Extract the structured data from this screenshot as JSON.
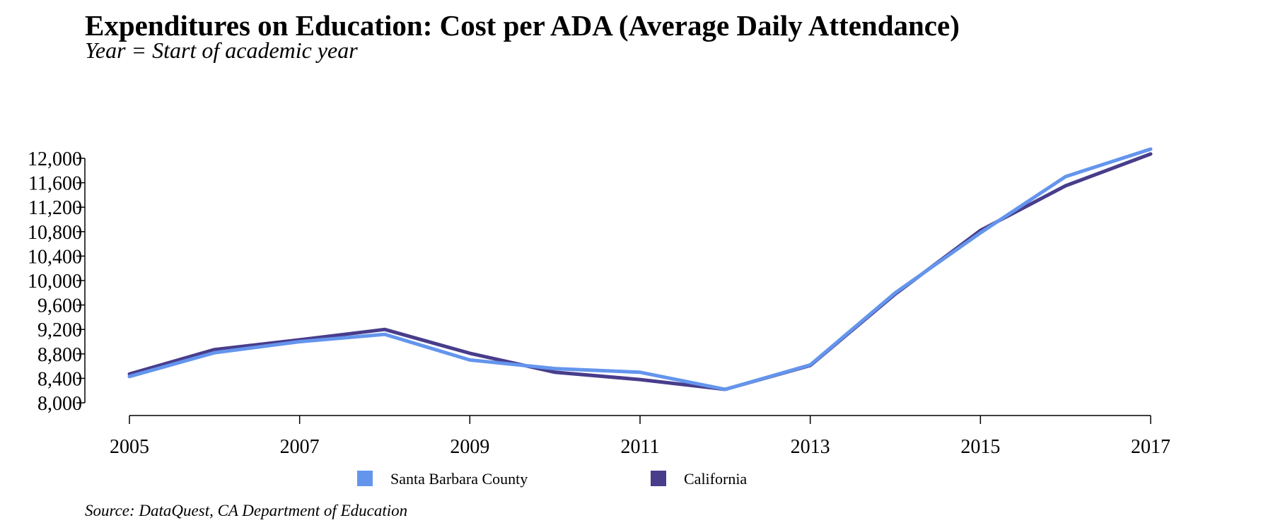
{
  "chart_data": {
    "type": "line",
    "title": "Expenditures on Education: Cost per ADA (Average Daily Attendance)",
    "subtitle": "Year = Start of academic year",
    "source": "Source: DataQuest, CA Department of Education",
    "x": [
      2005,
      2006,
      2007,
      2008,
      2009,
      2010,
      2011,
      2012,
      2013,
      2014,
      2015,
      2016,
      2017
    ],
    "x_ticks": [
      2005,
      2007,
      2009,
      2011,
      2013,
      2015,
      2017
    ],
    "x_tick_labels": [
      "2005",
      "2007",
      "2009",
      "2011",
      "2013",
      "2015",
      "2017"
    ],
    "y_ticks": [
      8000,
      8400,
      8800,
      9200,
      9600,
      10000,
      10400,
      10800,
      11200,
      11600,
      12000
    ],
    "y_tick_labels": [
      "8,000",
      "8,400",
      "8,800",
      "9,200",
      "9,600",
      "10,000",
      "10,400",
      "10,800",
      "11,200",
      "11,600",
      "12,000"
    ],
    "xlim": [
      2005,
      2017
    ],
    "ylim": [
      8000,
      12000
    ],
    "grid": false,
    "legend_position": "bottom",
    "series": [
      {
        "name": "Santa Barbara County",
        "color": "#6495ED",
        "values": [
          8430,
          8820,
          9000,
          9120,
          8700,
          8560,
          8500,
          8220,
          8620,
          9800,
          10780,
          11700,
          12150
        ]
      },
      {
        "name": "California",
        "color": "#483D8B",
        "values": [
          8470,
          8870,
          9030,
          9200,
          8810,
          8500,
          8380,
          8220,
          8610,
          9780,
          10820,
          11550,
          12070
        ]
      }
    ]
  }
}
